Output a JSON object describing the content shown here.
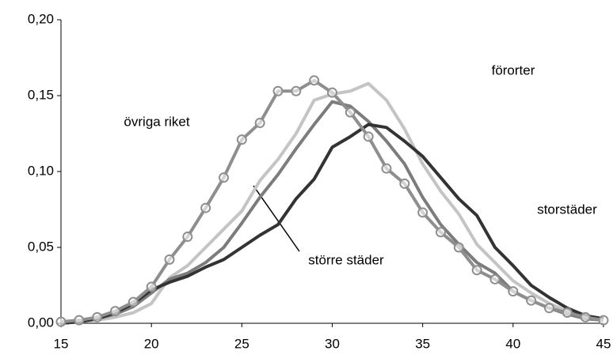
{
  "chart_data": {
    "type": "line",
    "x": [
      15,
      16,
      17,
      18,
      19,
      20,
      21,
      22,
      23,
      24,
      25,
      26,
      27,
      28,
      29,
      30,
      31,
      32,
      33,
      34,
      35,
      36,
      37,
      38,
      39,
      40,
      41,
      42,
      43,
      44,
      45
    ],
    "xlim": [
      15,
      45
    ],
    "xticks": [
      15,
      20,
      25,
      30,
      35,
      40,
      45
    ],
    "ylim": [
      0,
      0.2
    ],
    "yticks": [
      {
        "value": 0,
        "label": "0,00"
      },
      {
        "value": 0.05,
        "label": "0,05"
      },
      {
        "value": 0.1,
        "label": "0,10"
      },
      {
        "value": 0.15,
        "label": "0,15"
      },
      {
        "value": 0.2,
        "label": "0,20"
      }
    ],
    "grid": false,
    "series": [
      {
        "name": "förorter",
        "color": "#c4c4c4",
        "values": [
          0.0,
          0.001,
          0.002,
          0.004,
          0.007,
          0.013,
          0.03,
          0.038,
          0.05,
          0.062,
          0.074,
          0.094,
          0.108,
          0.125,
          0.147,
          0.151,
          0.153,
          0.158,
          0.147,
          0.128,
          0.105,
          0.087,
          0.072,
          0.052,
          0.04,
          0.028,
          0.02,
          0.013,
          0.008,
          0.004,
          0.002
        ]
      },
      {
        "name": "större städer",
        "color": "#7c7c7c",
        "values": [
          0.0,
          0.001,
          0.003,
          0.006,
          0.011,
          0.02,
          0.029,
          0.033,
          0.04,
          0.05,
          0.066,
          0.083,
          0.098,
          0.115,
          0.131,
          0.146,
          0.143,
          0.133,
          0.12,
          0.105,
          0.083,
          0.065,
          0.052,
          0.04,
          0.033,
          0.021,
          0.015,
          0.01,
          0.006,
          0.003,
          0.002
        ]
      },
      {
        "name": "storstäder",
        "color": "#333333",
        "values": [
          0.0,
          0.001,
          0.003,
          0.007,
          0.013,
          0.022,
          0.027,
          0.031,
          0.037,
          0.042,
          0.05,
          0.058,
          0.065,
          0.082,
          0.095,
          0.116,
          0.123,
          0.131,
          0.129,
          0.12,
          0.11,
          0.096,
          0.082,
          0.071,
          0.05,
          0.038,
          0.025,
          0.017,
          0.01,
          0.005,
          0.003
        ]
      },
      {
        "name": "övriga riket",
        "color": "#8e8e8e",
        "marker": "circle",
        "values": [
          0.001,
          0.002,
          0.004,
          0.008,
          0.014,
          0.024,
          0.042,
          0.057,
          0.076,
          0.096,
          0.121,
          0.132,
          0.153,
          0.153,
          0.16,
          0.152,
          0.139,
          0.123,
          0.102,
          0.092,
          0.073,
          0.06,
          0.05,
          0.035,
          0.029,
          0.021,
          0.015,
          0.01,
          0.007,
          0.004,
          0.002
        ]
      }
    ]
  }
}
